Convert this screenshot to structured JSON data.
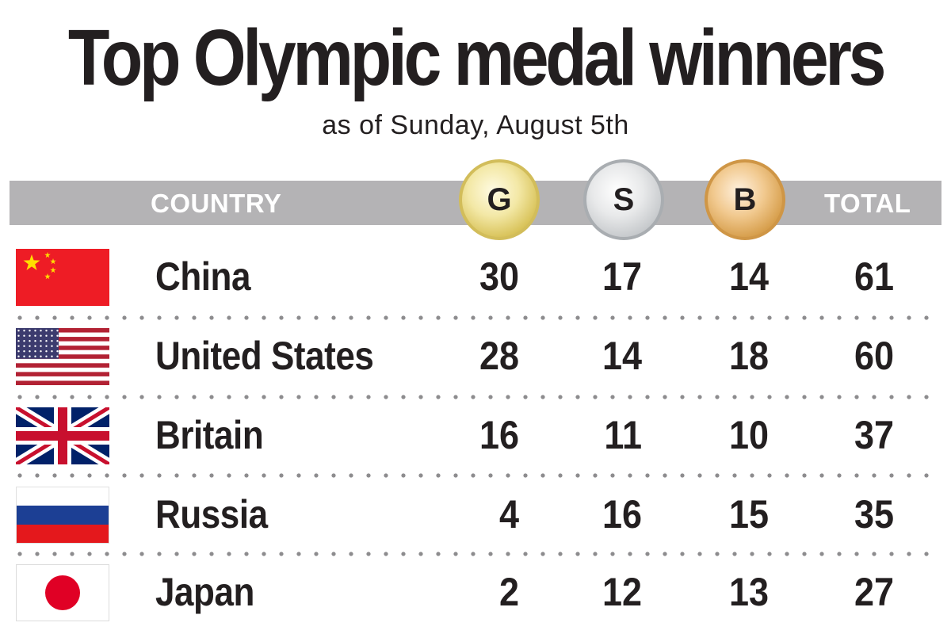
{
  "header": {
    "title": "Top Olympic medal winners",
    "subtitle": "as of Sunday, August 5th"
  },
  "columns": {
    "country": "COUNTRY",
    "gold": "G",
    "silver": "S",
    "bronze": "B",
    "total": "TOTAL"
  },
  "colors": {
    "gold": "#d6bf52",
    "silver": "#c3c6c9",
    "bronze": "#d49a45",
    "header_bar": "#b4b3b5",
    "text": "#231f20"
  },
  "rows": [
    {
      "country": "China",
      "flag": "china-flag",
      "gold": "30",
      "silver": "17",
      "bronze": "14",
      "total": "61"
    },
    {
      "country": "United States",
      "flag": "usa-flag",
      "gold": "28",
      "silver": "14",
      "bronze": "18",
      "total": "60"
    },
    {
      "country": "Britain",
      "flag": "uk-flag",
      "gold": "16",
      "silver": "11",
      "bronze": "10",
      "total": "37"
    },
    {
      "country": "Russia",
      "flag": "russia-flag",
      "gold": "4",
      "silver": "16",
      "bronze": "15",
      "total": "35"
    },
    {
      "country": "Japan",
      "flag": "japan-flag",
      "gold": "2",
      "silver": "12",
      "bronze": "13",
      "total": "27"
    }
  ],
  "chart_data": {
    "type": "table",
    "title": "Top Olympic medal winners",
    "subtitle": "as of Sunday, August 5th",
    "columns": [
      "COUNTRY",
      "G",
      "S",
      "B",
      "TOTAL"
    ],
    "categories": [
      "China",
      "United States",
      "Britain",
      "Russia",
      "Japan"
    ],
    "series": [
      {
        "name": "G",
        "values": [
          30,
          28,
          16,
          4,
          2
        ]
      },
      {
        "name": "S",
        "values": [
          17,
          14,
          11,
          16,
          12
        ]
      },
      {
        "name": "B",
        "values": [
          14,
          18,
          10,
          15,
          13
        ]
      },
      {
        "name": "TOTAL",
        "values": [
          61,
          60,
          37,
          35,
          27
        ]
      }
    ]
  }
}
